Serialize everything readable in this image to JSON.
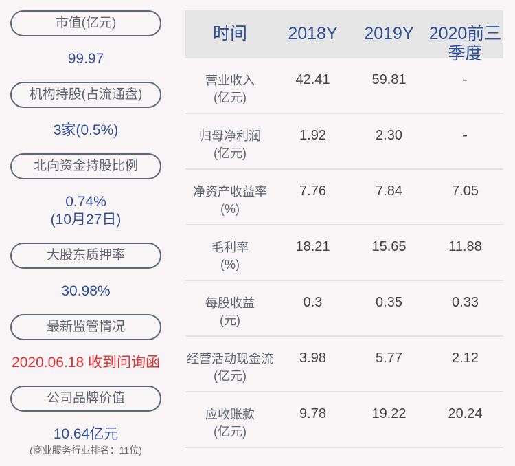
{
  "left": [
    {
      "label": "市值(亿元)",
      "value": "99.97"
    },
    {
      "label": "机构持股(占流通盘)",
      "value": "3家(0.5%)"
    },
    {
      "label": "北向资金持股比例",
      "value": "0.74%",
      "value2": "(10月27日)"
    },
    {
      "label": "大股东质押率",
      "value": "30.98%"
    },
    {
      "label": "最新监管情况",
      "value": "2020.06.18 收到问询函"
    },
    {
      "label": "公司品牌价值",
      "value": "10.64亿元",
      "note": "(商业服务行业排名：11位)"
    }
  ],
  "colors": {
    "accent": "#2f4f98",
    "alert": "#e23030"
  },
  "table": {
    "headers": [
      "时间",
      "2018Y",
      "2019Y",
      "2020前三季度"
    ],
    "rows": [
      {
        "label": "营业收入",
        "unit": "(亿元)",
        "values": [
          "42.41",
          "59.81",
          "-"
        ]
      },
      {
        "label": "归母净利润",
        "unit": "(亿元)",
        "values": [
          "1.92",
          "2.30",
          "-"
        ]
      },
      {
        "label": "净资产收益率",
        "unit": "(%)",
        "values": [
          "7.76",
          "7.84",
          "7.05"
        ]
      },
      {
        "label": "毛利率",
        "unit": "(%)",
        "values": [
          "18.21",
          "15.65",
          "11.88"
        ]
      },
      {
        "label": "每股收益",
        "unit": "(元)",
        "values": [
          "0.3",
          "0.35",
          "0.33"
        ]
      },
      {
        "label": "经营活动现金流",
        "unit": "(亿元)",
        "values": [
          "3.98",
          "5.77",
          "2.12"
        ]
      },
      {
        "label": "应收账款",
        "unit": "(亿元)",
        "values": [
          "9.78",
          "19.22",
          "20.24"
        ]
      }
    ]
  }
}
